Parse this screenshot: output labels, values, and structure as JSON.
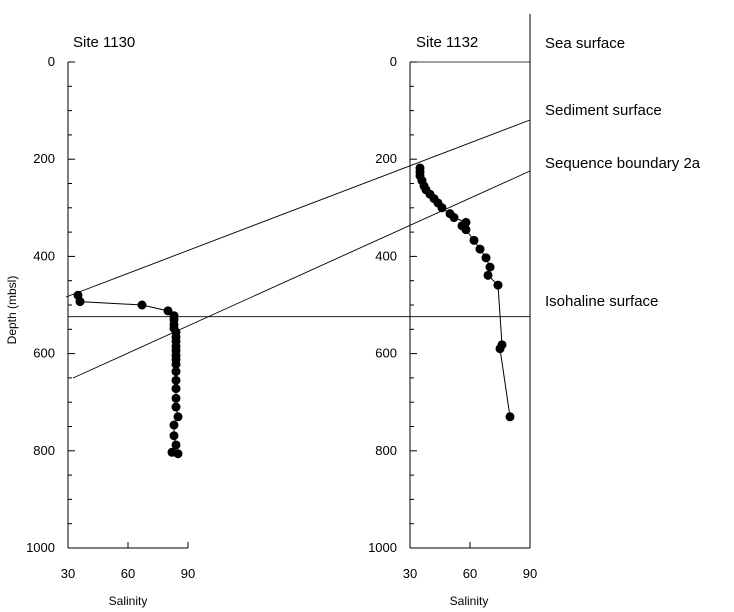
{
  "chart_data": {
    "type": "scatter",
    "ylabel": "Depth (mbsl)",
    "ylim": [
      0,
      1000
    ],
    "yticks": [
      0,
      200,
      400,
      600,
      800,
      1000
    ],
    "y_inverted": true,
    "grid": false,
    "panels": [
      {
        "title": "Site 1130",
        "xlabel": "Salinity",
        "xlim": [
          30,
          90
        ],
        "xticks": [
          30,
          60,
          90
        ],
        "series": [
          {
            "line": true,
            "marker": "filled-circle",
            "points": [
              [
                35,
                480
              ],
              [
                36,
                493
              ],
              [
                67,
                500
              ],
              [
                80,
                512
              ],
              [
                83,
                522
              ],
              [
                83,
                530
              ],
              [
                83,
                540
              ],
              [
                83,
                548
              ],
              [
                84,
                556
              ],
              [
                84,
                566
              ],
              [
                84,
                575
              ],
              [
                84,
                585
              ],
              [
                84,
                594
              ],
              [
                84,
                604
              ],
              [
                84,
                612
              ],
              [
                84,
                622
              ],
              [
                84,
                637
              ],
              [
                84,
                655
              ],
              [
                84,
                672
              ],
              [
                84,
                692
              ],
              [
                84,
                710
              ],
              [
                85,
                730
              ],
              [
                83,
                747
              ],
              [
                83,
                769
              ],
              [
                84,
                788
              ],
              [
                82,
                803
              ],
              [
                85,
                806
              ]
            ]
          }
        ]
      },
      {
        "title": "Site 1132",
        "xlabel": "Salinity",
        "xlim": [
          30,
          90
        ],
        "xticks": [
          30,
          60,
          90
        ],
        "series": [
          {
            "line": true,
            "marker": "filled-circle",
            "points": [
              [
                35,
                218
              ],
              [
                35,
                226
              ],
              [
                35,
                234
              ],
              [
                36,
                244
              ],
              [
                37,
                255
              ],
              [
                38,
                263
              ],
              [
                40,
                272
              ],
              [
                42,
                281
              ],
              [
                44,
                290
              ],
              [
                46,
                300
              ],
              [
                50,
                312
              ],
              [
                52,
                320
              ],
              [
                58,
                330
              ],
              [
                56,
                337
              ],
              [
                58,
                345
              ],
              [
                62,
                367
              ],
              [
                65,
                385
              ],
              [
                68,
                403
              ],
              [
                70,
                422
              ],
              [
                69,
                439
              ],
              [
                74,
                459
              ],
              [
                76,
                582
              ],
              [
                75,
                590
              ],
              [
                80,
                730
              ]
            ]
          }
        ]
      }
    ],
    "annotations": {
      "horizontal_lines": [
        {
          "label": "Sea surface",
          "depth": 0
        },
        {
          "label": "Isohaline surface",
          "depth": 524
        }
      ],
      "sloping_lines": [
        {
          "label": "Sediment surface"
        },
        {
          "label": "Sequence boundary 2a"
        }
      ]
    }
  }
}
